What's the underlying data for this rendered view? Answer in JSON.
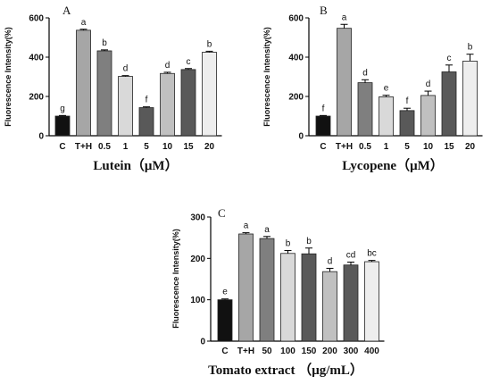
{
  "chart_data": [
    {
      "type": "bar",
      "panel_label": "A",
      "ylabel": "Fluorescence Intensity(%)",
      "xlabel": "Lutein（μM）",
      "ylim": [
        0,
        600
      ],
      "yticks": [
        0,
        200,
        400,
        600
      ],
      "categories": [
        "C",
        "T+H",
        "0.5",
        "1",
        "5",
        "10",
        "15",
        "20"
      ],
      "values": [
        100,
        537,
        432,
        302,
        143,
        317,
        337,
        425
      ],
      "errors": [
        3,
        5,
        5,
        4,
        4,
        6,
        5,
        5
      ],
      "letters": [
        "g",
        "a",
        "b",
        "d",
        "f",
        "d",
        "c",
        "b"
      ],
      "colors": [
        "#111111",
        "#a6a6a6",
        "#7f7f7f",
        "#d9d9d9",
        "#595959",
        "#c0c0c0",
        "#595959",
        "#eeeeee"
      ]
    },
    {
      "type": "bar",
      "panel_label": "B",
      "ylabel": "Fluorescence Intensity(%)",
      "xlabel": "Lycopene（μM）",
      "ylim": [
        0,
        600
      ],
      "yticks": [
        0,
        200,
        400,
        600
      ],
      "categories": [
        "C",
        "T+H",
        "0.5",
        "1",
        "5",
        "10",
        "15",
        "20"
      ],
      "values": [
        100,
        547,
        270,
        198,
        128,
        205,
        325,
        380
      ],
      "errors": [
        3,
        20,
        15,
        8,
        12,
        22,
        35,
        35
      ],
      "letters": [
        "f",
        "a",
        "d",
        "e",
        "f",
        "d",
        "c",
        "b"
      ],
      "colors": [
        "#111111",
        "#a6a6a6",
        "#7f7f7f",
        "#d9d9d9",
        "#595959",
        "#c0c0c0",
        "#595959",
        "#eeeeee"
      ]
    },
    {
      "type": "bar",
      "panel_label": "C",
      "ylabel": "Fluorescence Intensity(%)",
      "xlabel": "Tomato extract （μg/mL）",
      "ylim": [
        0,
        300
      ],
      "yticks": [
        0,
        100,
        200,
        300
      ],
      "categories": [
        "C",
        "T+H",
        "50",
        "100",
        "150",
        "200",
        "300",
        "400"
      ],
      "values": [
        100,
        259,
        248,
        212,
        211,
        168,
        184,
        192
      ],
      "errors": [
        2,
        3,
        5,
        7,
        14,
        8,
        7,
        3
      ],
      "letters": [
        "e",
        "a",
        "a",
        "b",
        "b",
        "d",
        "cd",
        "bc"
      ],
      "colors": [
        "#111111",
        "#a6a6a6",
        "#7f7f7f",
        "#d9d9d9",
        "#595959",
        "#c0c0c0",
        "#595959",
        "#eeeeee"
      ]
    }
  ]
}
